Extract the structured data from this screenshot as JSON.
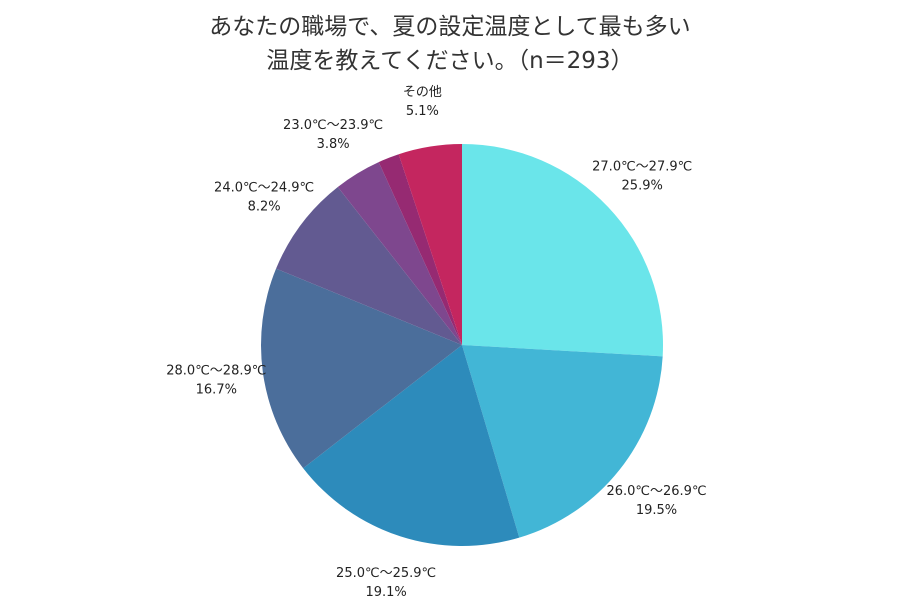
{
  "chart_data": {
    "type": "pie",
    "title": [
      "あなたの職場で、夏の設定温度として最も多い",
      "温度を教えてください。（n＝293）"
    ],
    "slices": [
      {
        "label": "27.0℃〜27.9℃",
        "value": 25.9,
        "value_label": "25.9%",
        "color": "#6ae5ea"
      },
      {
        "label": "26.0℃〜26.9℃",
        "value": 19.5,
        "value_label": "19.5%",
        "color": "#42b6d6"
      },
      {
        "label": "25.0℃〜25.9℃",
        "value": 19.1,
        "value_label": "19.1%",
        "color": "#2d8bbb"
      },
      {
        "label": "28.0℃〜28.9℃",
        "value": 16.7,
        "value_label": "16.7%",
        "color": "#4b6e9b"
      },
      {
        "label": "24.0℃〜24.9℃",
        "value": 8.2,
        "value_label": "8.2%",
        "color": "#625a91"
      },
      {
        "label": "23.0℃〜23.9℃",
        "value": 3.8,
        "value_label": "3.8%",
        "color": "#7e478e"
      },
      {
        "label": "",
        "value": 1.7,
        "value_label": "",
        "color": "#962a72"
      },
      {
        "label": "その他",
        "value": 5.1,
        "value_label": "5.1%",
        "color": "#c4265f"
      }
    ]
  }
}
